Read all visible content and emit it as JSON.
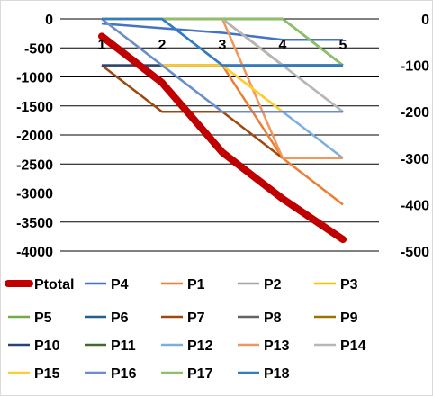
{
  "chart_data": {
    "type": "line",
    "categories": [
      "1",
      "2",
      "3",
      "4",
      "5"
    ],
    "title": "",
    "xlabel": "",
    "ylabel": "",
    "ylim": [
      -4000,
      0
    ],
    "y2lim": [
      -500,
      0
    ],
    "y_ticks": [
      "0",
      "-500",
      "-1000",
      "-1500",
      "-2000",
      "-2500",
      "-3000",
      "-3500",
      "-4000"
    ],
    "y2_ticks": [
      "0",
      "-100",
      "-200",
      "-300",
      "-400",
      "-500"
    ],
    "grid": true,
    "legend_position": "bottom",
    "series": [
      {
        "name": "Ptotal",
        "axis": "left",
        "color": "#c00000",
        "values": [
          -300,
          -1100,
          -2300,
          -3100,
          -3800
        ]
      },
      {
        "name": "P4",
        "axis": "right",
        "color": "#4472c4",
        "values": [
          -10,
          -20,
          -30,
          -45,
          -45
        ]
      },
      {
        "name": "P1",
        "axis": "right",
        "color": "#ed7d31",
        "values": [
          -100,
          -100,
          -100,
          -300,
          -400
        ]
      },
      {
        "name": "P2",
        "axis": "right",
        "color": "#a5a5a5",
        "values": [
          0,
          0,
          0,
          -100,
          -200
        ]
      },
      {
        "name": "P3",
        "axis": "right",
        "color": "#ffc000",
        "values": [
          -100,
          -100,
          -100,
          -200,
          -200
        ]
      },
      {
        "name": "P5",
        "axis": "right",
        "color": "#70ad47",
        "values": [
          0,
          0,
          0,
          0,
          -100
        ]
      },
      {
        "name": "P6",
        "axis": "right",
        "color": "#255e91",
        "values": [
          0,
          0,
          -100,
          -100,
          -100
        ]
      },
      {
        "name": "P7",
        "axis": "right",
        "color": "#9e480e",
        "values": [
          -100,
          -200,
          -200,
          -300,
          -300
        ]
      },
      {
        "name": "P8",
        "axis": "right",
        "color": "#636363",
        "values": [
          0,
          0,
          0,
          -100,
          -100
        ]
      },
      {
        "name": "P9",
        "axis": "right",
        "color": "#997300",
        "values": [
          0,
          0,
          0,
          -100,
          -100
        ]
      },
      {
        "name": "P10",
        "axis": "right",
        "color": "#264478",
        "values": [
          -100,
          -100,
          -100,
          -100,
          -100
        ]
      },
      {
        "name": "P11",
        "axis": "right",
        "color": "#43682b",
        "values": [
          0,
          0,
          0,
          0,
          -100
        ]
      },
      {
        "name": "P12",
        "axis": "right",
        "color": "#7cafdd",
        "values": [
          0,
          -100,
          -200,
          -200,
          -300
        ]
      },
      {
        "name": "P13",
        "axis": "right",
        "color": "#f1975a",
        "values": [
          0,
          0,
          0,
          -300,
          -300
        ]
      },
      {
        "name": "P14",
        "axis": "right",
        "color": "#b7b7b7",
        "values": [
          0,
          0,
          0,
          -100,
          -200
        ]
      },
      {
        "name": "P15",
        "axis": "right",
        "color": "#ffcd33",
        "values": [
          0,
          -100,
          -100,
          -200,
          -200
        ]
      },
      {
        "name": "P16",
        "axis": "right",
        "color": "#698ed0",
        "values": [
          0,
          -100,
          -200,
          -200,
          -200
        ]
      },
      {
        "name": "P17",
        "axis": "right",
        "color": "#8cc168",
        "values": [
          0,
          0,
          0,
          0,
          -100
        ]
      },
      {
        "name": "P18",
        "axis": "right",
        "color": "#327dc2",
        "values": [
          0,
          0,
          -100,
          -100,
          -100
        ]
      }
    ]
  }
}
